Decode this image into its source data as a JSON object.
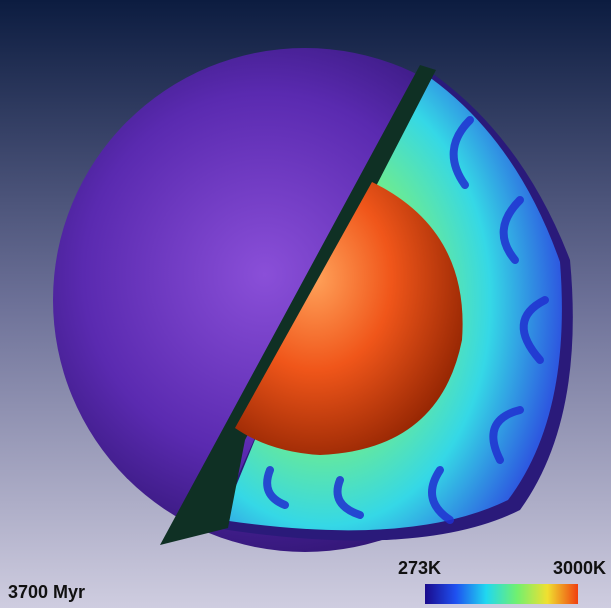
{
  "time_label": "3700 Myr",
  "colorbar": {
    "min_label": "273K",
    "max_label": "3000K"
  }
}
